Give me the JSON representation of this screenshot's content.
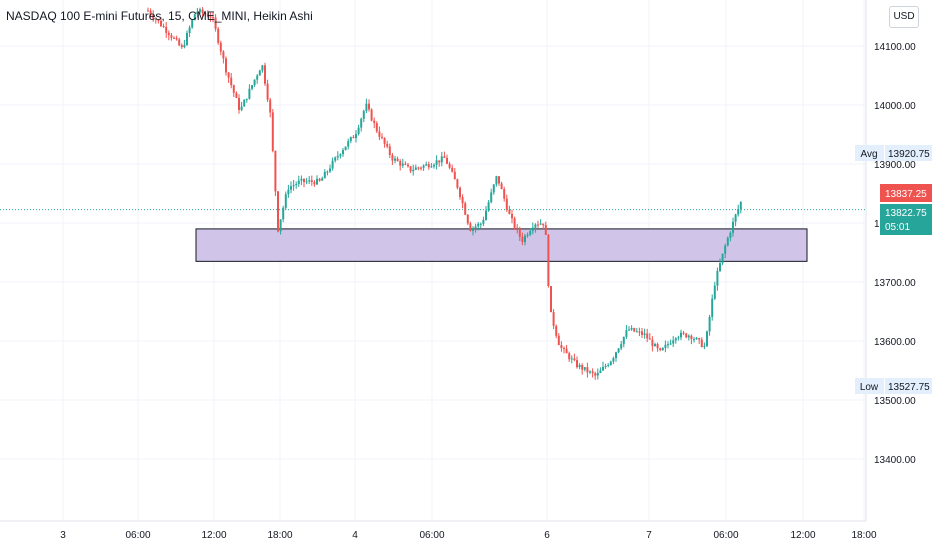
{
  "title": "NASDAQ 100 E-mini Futures, 15, CME_MINI, Heikin Ashi",
  "currency": "USD",
  "colors": {
    "up": "#26a69a",
    "down": "#ef5350",
    "zone_fill": "#d1c4e9",
    "zone_stroke": "#131722",
    "grid": "#f0f3fa",
    "price_line": "#26a69a"
  },
  "chart_data": {
    "type": "candlestick",
    "chart_style": "Heikin Ashi",
    "symbol": "NASDAQ 100 E-mini Futures",
    "interval": "15",
    "exchange": "CME_MINI",
    "y_axis": {
      "ticks": [
        "13400.00",
        "13500.00",
        "13600.00",
        "13700.00",
        "13800.00",
        "13900.00",
        "14000.00",
        "14100.00"
      ],
      "range": [
        13310,
        14180
      ]
    },
    "x_axis": {
      "ticks": [
        "3",
        "06:00",
        "12:00",
        "18:00",
        "4",
        "06:00",
        "6",
        "7",
        "06:00",
        "12:00",
        "18:00"
      ]
    },
    "price_labels": [
      {
        "label": "Avg",
        "value": "13920.75"
      },
      {
        "label": "",
        "value": "13837.25"
      },
      {
        "label": "",
        "value": "13822.75",
        "countdown": "05:01"
      },
      {
        "label": "Low",
        "value": "13527.75"
      }
    ],
    "zone": {
      "top": 13790,
      "bottom": 13735
    },
    "grid": true
  }
}
